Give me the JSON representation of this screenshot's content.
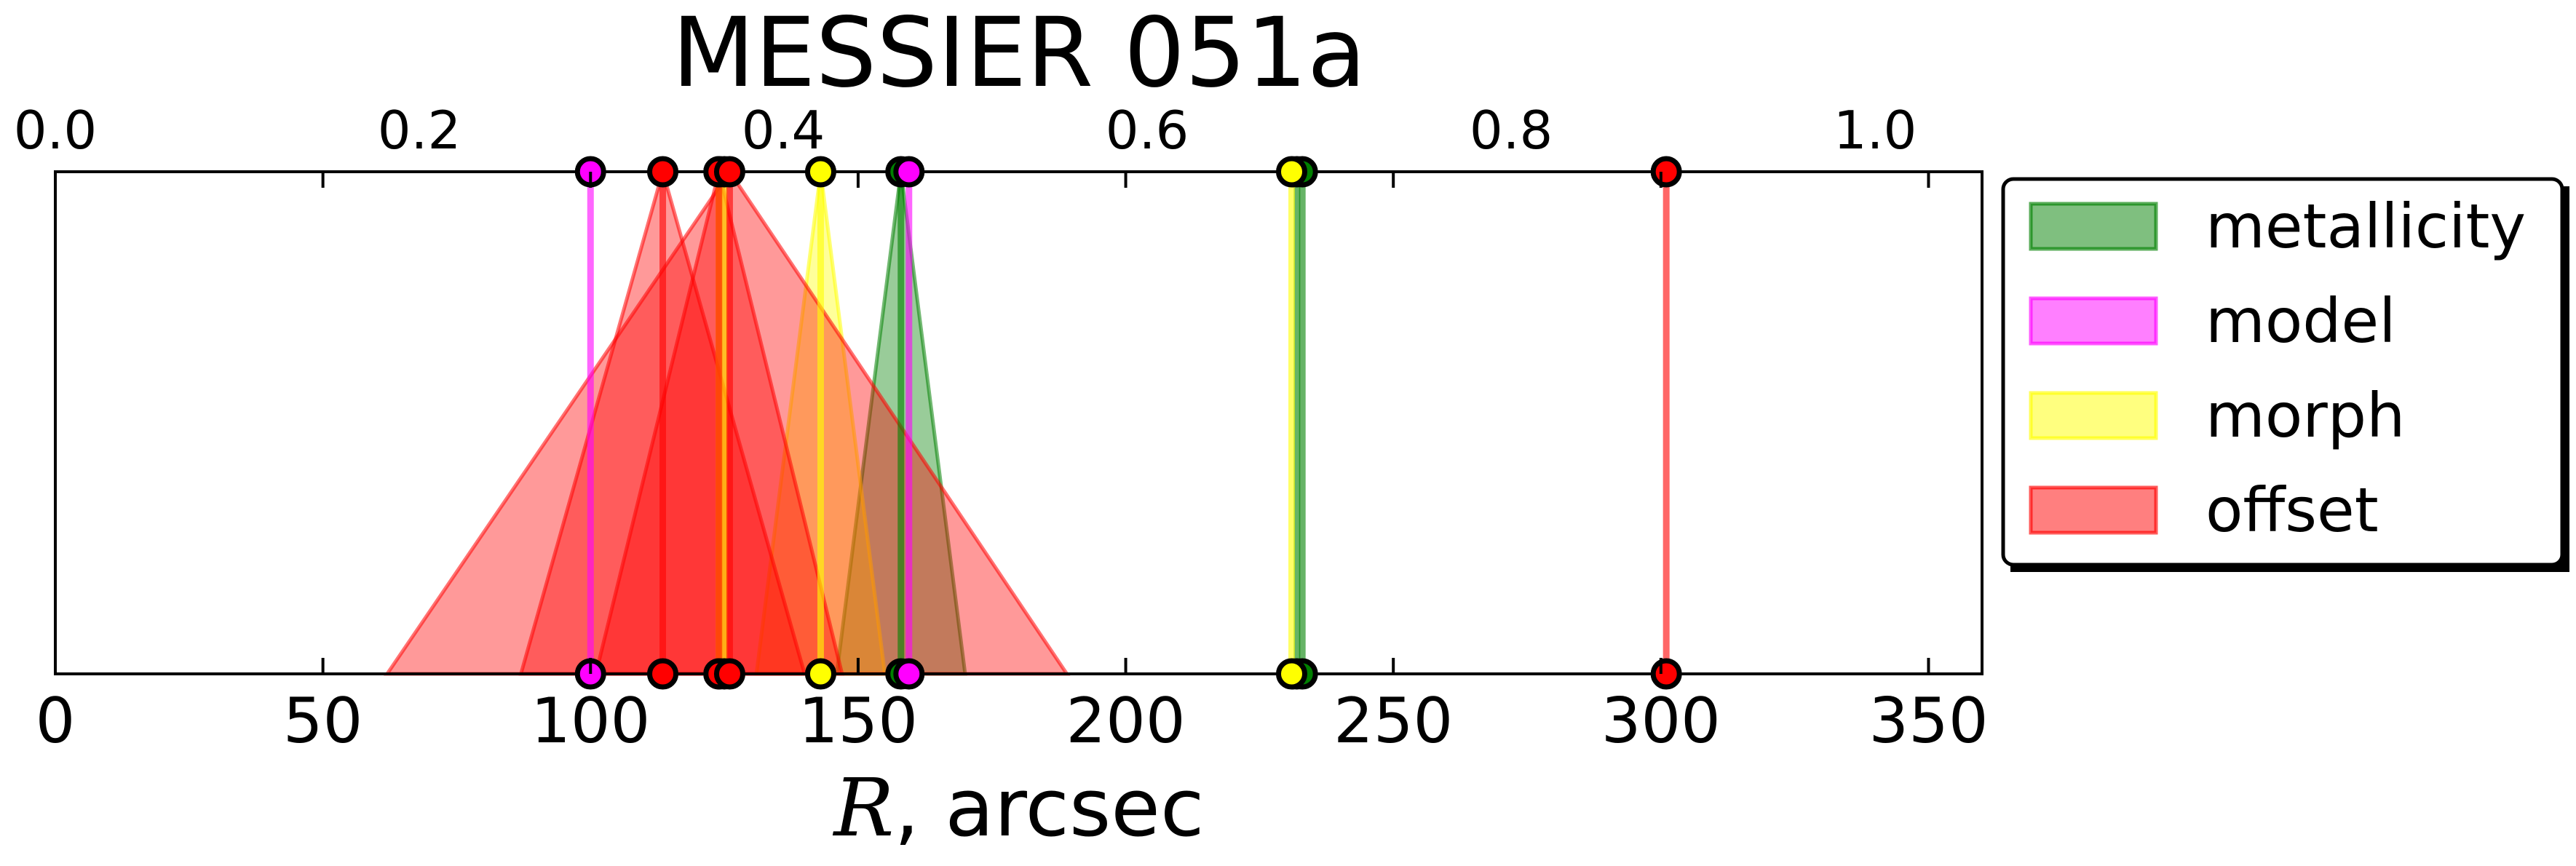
{
  "chart_data": {
    "type": "area",
    "title": "MESSIER 051a",
    "xlabel_var": "R",
    "xlabel_rest": ", arcsec",
    "xlim": [
      0,
      360
    ],
    "ylim": [
      0,
      1
    ],
    "grid": false,
    "bottom_ticks": [
      0,
      50,
      100,
      150,
      200,
      250,
      300,
      350
    ],
    "top_axis": {
      "scale_per_data_unit": 0.002941,
      "ticks": [
        "0.0",
        "0.2",
        "0.4",
        "0.6",
        "0.8",
        "1.0"
      ]
    },
    "legend_position": "outside-right-top",
    "series": [
      {
        "name": "metallicity",
        "color": "#008000",
        "estimates": [
          {
            "center": 158,
            "low": 146,
            "high": 170
          },
          {
            "center": 232,
            "low": 232,
            "high": 232
          },
          {
            "center": 233,
            "low": 233,
            "high": 233
          }
        ]
      },
      {
        "name": "model",
        "color": "#ff00ff",
        "estimates": [
          {
            "center": 100,
            "low": 100,
            "high": 100
          },
          {
            "center": 159.5,
            "low": 159.5,
            "high": 159.5
          }
        ]
      },
      {
        "name": "morph",
        "color": "#ffff00",
        "estimates": [
          {
            "center": 124,
            "low": 124,
            "high": 124
          },
          {
            "center": 125,
            "low": 125,
            "high": 125
          },
          {
            "center": 143,
            "low": 131,
            "high": 155
          },
          {
            "center": 231,
            "low": 231,
            "high": 231
          }
        ]
      },
      {
        "name": "offset",
        "color": "#ff0000",
        "estimates": [
          {
            "center": 113.5,
            "low": 87,
            "high": 140
          },
          {
            "center": 124,
            "low": 101,
            "high": 147
          },
          {
            "center": 126,
            "low": 62,
            "high": 189
          },
          {
            "center": 301,
            "low": 301,
            "high": 301
          }
        ]
      }
    ]
  }
}
